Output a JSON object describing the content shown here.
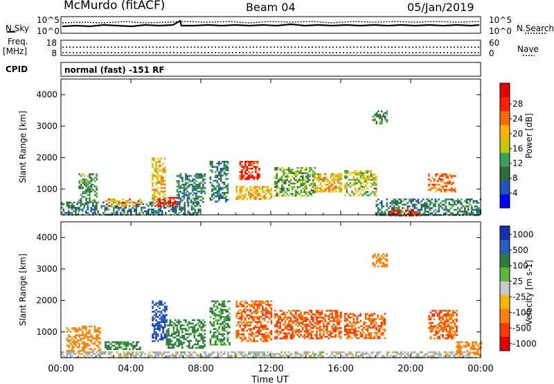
{
  "header": {
    "station": "McMurdo (fitACF)",
    "beam": "Beam 04",
    "date": "05/Jan/2019"
  },
  "top_panels": {
    "nsky_label": "N.Sky",
    "nsearch_label": "N.Search",
    "freq_label": "Freq.",
    "freq_unit": "[MHz]",
    "nave_label": "Nave",
    "cpid_label": "CPID",
    "cpid_text": "normal (fast) -151 RF",
    "noise_ticks_left": [
      "10^5",
      "10^0"
    ],
    "noise_ticks_right": [
      "10^5",
      "10^0"
    ],
    "freq_ticks_left": [
      "18",
      "8"
    ],
    "nave_ticks_right": [
      "60",
      "0"
    ]
  },
  "colors": {
    "power_scale": [
      "#0000ff",
      "#2255b8",
      "#2e6e3a",
      "#3aa055",
      "#c8c800",
      "#ffb000",
      "#ff6a00",
      "#ff2000",
      "#e80000"
    ],
    "velocity_scale": [
      "#1a2fb0",
      "#2a5bbf",
      "#2e7d3e",
      "#5ab83a",
      "#c8c8c8",
      "#ffb400",
      "#ff8000",
      "#ff3a00",
      "#e00000"
    ],
    "ground_scatter": "#b0b0b0"
  },
  "chart_data": [
    {
      "type": "heatmap",
      "title": "Power",
      "xlabel": "Time UT",
      "ylabel": "Slant Range [km]",
      "colorbar_label": "Power [dB]",
      "colorbar_ticks": [
        "4",
        "8",
        "12",
        "16",
        "20",
        "24",
        "28"
      ],
      "clim": [
        0,
        30
      ],
      "x_ticks": [
        "00:00",
        "04:00",
        "08:00",
        "12:00",
        "16:00",
        "20:00",
        "00:00"
      ],
      "xlim_hours": [
        0,
        24
      ],
      "y_ticks": [
        "1000",
        "2000",
        "3000",
        "4000"
      ],
      "ylim": [
        180,
        4500
      ],
      "regions": [
        {
          "t0": 0.0,
          "t1": 8.0,
          "r0": 180,
          "r1": 600,
          "value": 8
        },
        {
          "t0": 1.0,
          "t1": 2.0,
          "r0": 600,
          "r1": 1500,
          "value": 10
        },
        {
          "t0": 2.5,
          "t1": 4.5,
          "r0": 450,
          "r1": 700,
          "value": 20
        },
        {
          "t0": 5.2,
          "t1": 5.9,
          "r0": 500,
          "r1": 2000,
          "value": 18
        },
        {
          "t0": 5.5,
          "t1": 6.6,
          "r0": 450,
          "r1": 750,
          "value": 26
        },
        {
          "t0": 6.6,
          "t1": 8.2,
          "r0": 600,
          "r1": 1500,
          "value": 9
        },
        {
          "t0": 8.5,
          "t1": 9.5,
          "r0": 600,
          "r1": 1900,
          "value": 8
        },
        {
          "t0": 10.2,
          "t1": 11.3,
          "r0": 1300,
          "r1": 1900,
          "value": 26
        },
        {
          "t0": 10.0,
          "t1": 12.0,
          "r0": 700,
          "r1": 1100,
          "value": 18
        },
        {
          "t0": 12.2,
          "t1": 14.5,
          "r0": 800,
          "r1": 1700,
          "value": 12
        },
        {
          "t0": 14.5,
          "t1": 16.0,
          "r0": 900,
          "r1": 1500,
          "value": 17
        },
        {
          "t0": 16.2,
          "t1": 18.0,
          "r0": 800,
          "r1": 1600,
          "value": 14
        },
        {
          "t0": 17.8,
          "t1": 18.6,
          "r0": 3100,
          "r1": 3500,
          "value": 10
        },
        {
          "t0": 18.0,
          "t1": 24.0,
          "r0": 180,
          "r1": 700,
          "value": 9
        },
        {
          "t0": 18.8,
          "t1": 20.5,
          "r0": 180,
          "r1": 350,
          "value": 27
        },
        {
          "t0": 21.0,
          "t1": 22.5,
          "r0": 900,
          "r1": 1500,
          "value": 22
        }
      ]
    },
    {
      "type": "heatmap",
      "title": "Velocity",
      "xlabel": "Time UT",
      "ylabel": "Slant Range [km]",
      "colorbar_label": "Velocity [m s-1]",
      "colorbar_ticks": [
        "1000",
        "500",
        "100",
        "25",
        "-25",
        "-100",
        "-500",
        "-1000"
      ],
      "clim": [
        -1000,
        1000
      ],
      "x_ticks": [
        "00:00",
        "04:00",
        "08:00",
        "12:00",
        "16:00",
        "20:00",
        "00:00"
      ],
      "xlim_hours": [
        0,
        24
      ],
      "y_ticks": [
        "1000",
        "2000",
        "3000",
        "4000"
      ],
      "ylim": [
        180,
        4500
      ],
      "regions": [
        {
          "t0": 0.0,
          "t1": 24.0,
          "r0": 180,
          "r1": 380,
          "value": 0
        },
        {
          "t0": 0.3,
          "t1": 2.2,
          "r0": 400,
          "r1": 1200,
          "value": -200
        },
        {
          "t0": 2.5,
          "t1": 4.5,
          "r0": 450,
          "r1": 700,
          "value": 150
        },
        {
          "t0": 5.2,
          "t1": 6.0,
          "r0": 700,
          "r1": 2000,
          "value": 600
        },
        {
          "t0": 6.0,
          "t1": 8.2,
          "r0": 500,
          "r1": 1400,
          "value": 150
        },
        {
          "t0": 8.5,
          "t1": 9.6,
          "r0": 600,
          "r1": 2000,
          "value": 120
        },
        {
          "t0": 10.0,
          "t1": 12.0,
          "r0": 700,
          "r1": 2000,
          "value": -300
        },
        {
          "t0": 12.2,
          "t1": 16.0,
          "r0": 800,
          "r1": 1700,
          "value": -300
        },
        {
          "t0": 16.2,
          "t1": 18.5,
          "r0": 800,
          "r1": 1600,
          "value": -300
        },
        {
          "t0": 17.8,
          "t1": 18.6,
          "r0": 3100,
          "r1": 3500,
          "value": -200
        },
        {
          "t0": 21.0,
          "t1": 22.6,
          "r0": 800,
          "r1": 1700,
          "value": -300
        },
        {
          "t0": 22.6,
          "t1": 24.0,
          "r0": 300,
          "r1": 700,
          "value": -200
        }
      ]
    }
  ]
}
